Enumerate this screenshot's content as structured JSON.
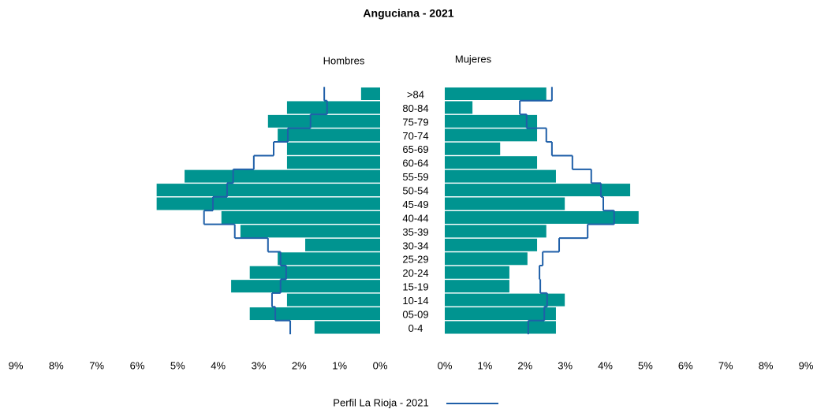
{
  "chart_data": {
    "type": "pyramid",
    "title": "Anguciana - 2021",
    "categories": [
      ">84",
      "80-84",
      "75-79",
      "70-74",
      "65-69",
      "60-64",
      "55-59",
      "50-54",
      "45-49",
      "40-44",
      "35-39",
      "30-34",
      "25-29",
      "20-24",
      "15-19",
      "10-14",
      "05-09",
      "0-4"
    ],
    "series": [
      {
        "name": "Hombres",
        "color": "#009490",
        "values": [
          0.47,
          2.3,
          2.77,
          2.53,
          2.3,
          2.3,
          4.83,
          5.52,
          5.52,
          3.92,
          3.45,
          1.85,
          2.53,
          3.22,
          3.68,
          2.3,
          3.22,
          1.62
        ]
      },
      {
        "name": "Mujeres",
        "color": "#009490",
        "values": [
          2.53,
          0.69,
          2.3,
          2.3,
          1.38,
          2.3,
          2.77,
          4.62,
          2.99,
          4.83,
          2.53,
          2.3,
          2.06,
          1.61,
          1.61,
          2.99,
          2.77,
          2.77
        ]
      }
    ],
    "profile": {
      "name": "Perfil La Rioja - 2021",
      "color": "#1f5fa8",
      "left": [
        1.38,
        1.31,
        1.72,
        2.28,
        2.63,
        3.12,
        3.63,
        3.78,
        4.13,
        4.35,
        3.59,
        2.77,
        2.46,
        2.32,
        2.46,
        2.67,
        2.59,
        2.22
      ],
      "right": [
        2.67,
        1.87,
        2.04,
        2.53,
        2.67,
        3.18,
        3.65,
        3.89,
        3.95,
        4.22,
        3.56,
        2.85,
        2.44,
        2.36,
        2.38,
        2.55,
        2.48,
        2.08
      ]
    },
    "xlim": [
      0,
      9
    ],
    "xticks": [
      {
        "value": 0,
        "label": "0%"
      },
      {
        "value": 1,
        "label": "1%"
      },
      {
        "value": 2,
        "label": "2%"
      },
      {
        "value": 3,
        "label": "3%"
      },
      {
        "value": 4,
        "label": "4%"
      },
      {
        "value": 5,
        "label": "5%"
      },
      {
        "value": 6,
        "label": "6%"
      },
      {
        "value": 7,
        "label": "7%"
      },
      {
        "value": 8,
        "label": "8%"
      },
      {
        "value": 9,
        "label": "9%"
      }
    ]
  }
}
